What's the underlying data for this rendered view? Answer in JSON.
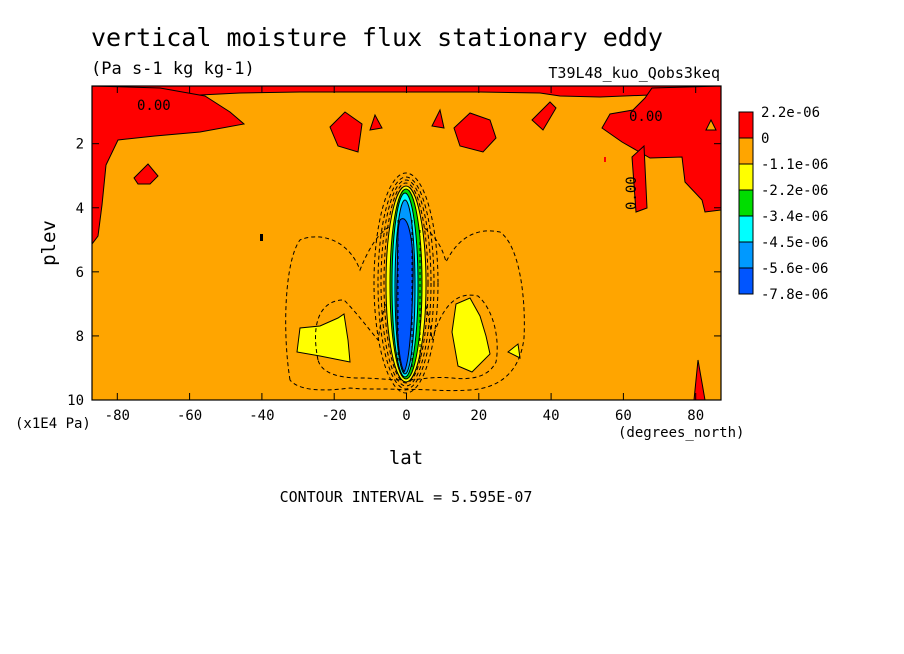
{
  "chart_data": {
    "type": "heatmap",
    "title": "vertical moisture flux stationary eddy",
    "subtitle": "(Pa s-1 kg kg-1)",
    "run_label": "T39L48_kuo_Qobs3keq",
    "xlabel": "lat",
    "x_units": "(degrees_north)",
    "ylabel": "plev",
    "y_units": "(x1E4 Pa)",
    "xlim": [
      -87,
      87
    ],
    "ylim": [
      10,
      0.2
    ],
    "x_ticks": [
      "-80",
      "-60",
      "-40",
      "-20",
      "0",
      "20",
      "40",
      "60",
      "80"
    ],
    "x_tick_values": [
      -80,
      -60,
      -40,
      -20,
      0,
      20,
      40,
      60,
      80
    ],
    "y_ticks": [
      "2",
      "4",
      "6",
      "8",
      "10"
    ],
    "y_tick_values": [
      2,
      4,
      6,
      8,
      10
    ],
    "grid": false,
    "colorbar": {
      "levels": [
        "2.2e-06",
        "0",
        "-1.1e-06",
        "-2.2e-06",
        "-3.4e-06",
        "-4.5e-06",
        "-5.6e-06",
        "-7.8e-06"
      ],
      "colors": [
        "#ff0000",
        "#ffa500",
        "#ffff00",
        "#00dd00",
        "#00ffff",
        "#0099ff",
        "#0055ff"
      ]
    },
    "contour_labels": [
      "0.00",
      "0.00",
      "0.00"
    ],
    "contour_interval_text": "CONTOUR INTERVAL = 5.595E-07"
  }
}
